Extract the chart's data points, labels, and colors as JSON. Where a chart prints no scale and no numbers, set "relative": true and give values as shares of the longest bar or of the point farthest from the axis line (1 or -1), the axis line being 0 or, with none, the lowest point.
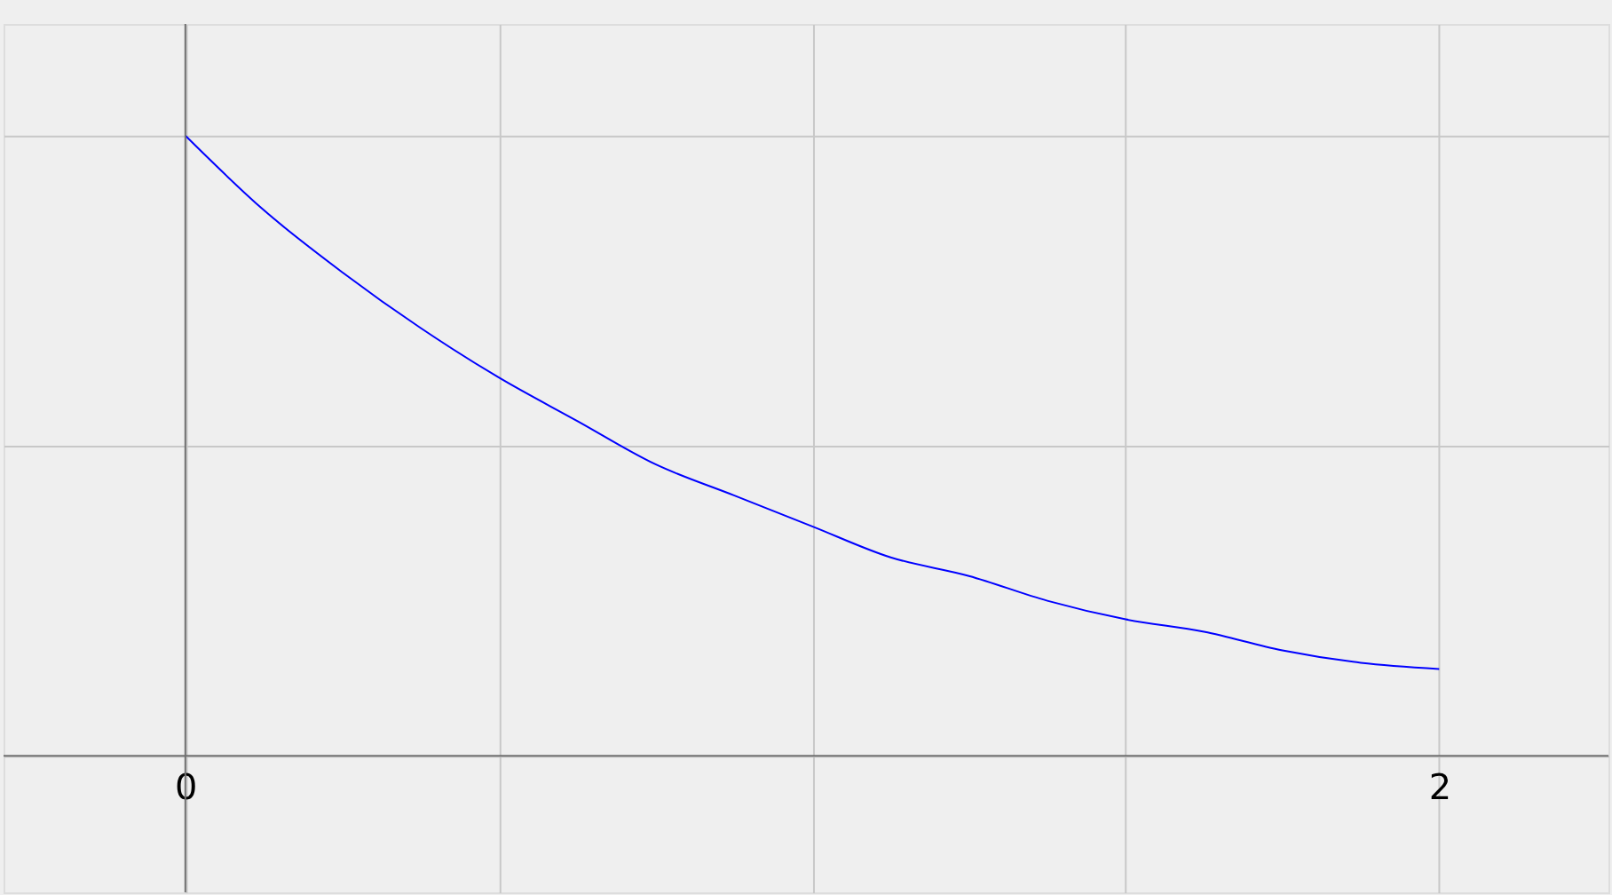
{
  "chart_data": {
    "type": "line",
    "relative": true,
    "x": [
      0,
      0.125,
      0.25,
      0.375,
      0.5,
      0.625,
      0.75,
      0.875,
      1,
      1.125,
      1.25,
      1.375,
      1.5,
      1.625,
      1.75,
      1.875,
      2
    ],
    "series": [
      {
        "color": "#0000ff",
        "values": [
          1,
          0.88,
          0.78,
          0.69,
          0.61,
          0.54,
          0.47,
          0.42,
          0.37,
          0.32,
          0.29,
          0.25,
          0.22,
          0.2,
          0.17,
          0.15,
          0.14
        ]
      }
    ],
    "xlim": [
      -0.29,
      2.27
    ],
    "xticks": [
      0,
      {
        "value": 0.5,
        "label": null
      },
      {
        "value": 1,
        "label": null
      },
      {
        "value": 1.5,
        "label": null
      },
      2
    ],
    "grid": true,
    "marker": "none",
    "line_style": "solid"
  }
}
